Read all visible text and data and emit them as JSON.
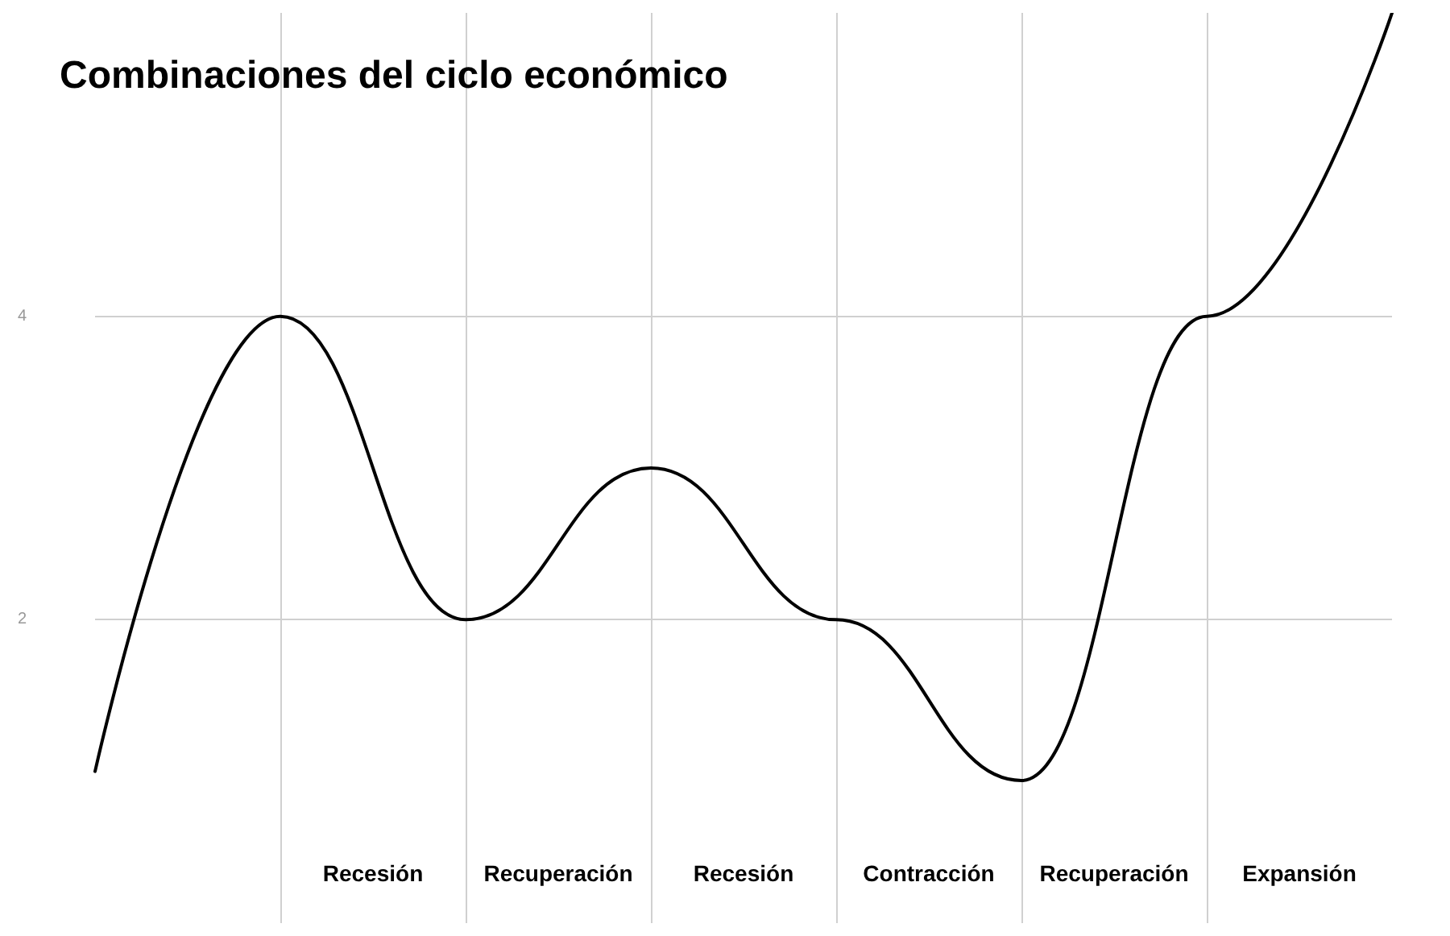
{
  "chart_data": {
    "type": "line",
    "title": "Combinaciones del ciclo económico",
    "categories": [
      null,
      null,
      null,
      null,
      null,
      null,
      null,
      null
    ],
    "series": [
      {
        "color": "#000000",
        "values": [
          1,
          4,
          2,
          3,
          2,
          0.94,
          4,
          6
        ]
      }
    ],
    "ylim": [
      0,
      6
    ],
    "yticks": [
      2,
      4
    ],
    "grid": true,
    "tick_labels": "y",
    "marker": "none",
    "line_style": "solid",
    "annotations": [
      "Recesión",
      "Recuperación",
      "Recesión",
      "Contracción",
      "Recuperación",
      "Expansión"
    ]
  }
}
